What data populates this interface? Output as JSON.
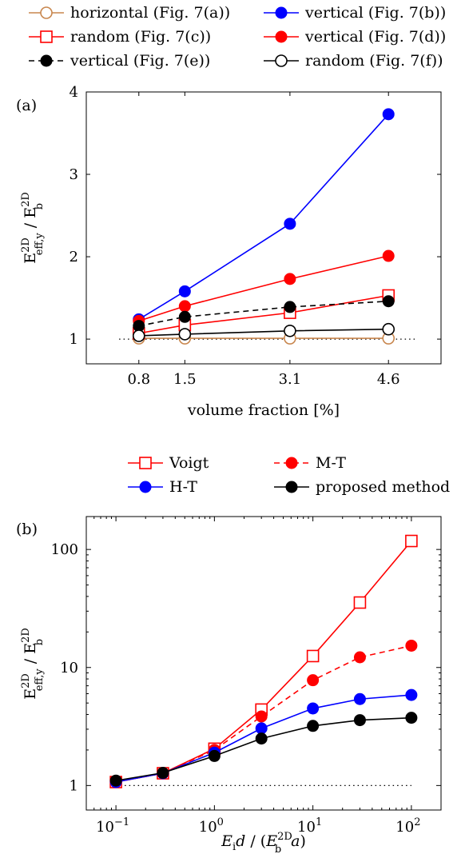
{
  "chart_data": [
    {
      "type": "line",
      "panel_label": "(a)",
      "xlabel": "volume fraction [%]",
      "ylabel": "E^2D_eff,y / E^2D_b",
      "x_ticks": [
        "0.8",
        "1.5",
        "3.1",
        "4.6"
      ],
      "y_ticks": [
        "1",
        "2",
        "3",
        "4"
      ],
      "xlim": [
        0.0,
        5.4
      ],
      "ylim": [
        0.7,
        4.0
      ],
      "grid": false,
      "legend_position": "top",
      "x": [
        0.8,
        1.5,
        3.1,
        4.6
      ],
      "reference_line": {
        "y": 1,
        "style": "dotted"
      },
      "series": [
        {
          "name": "horizontal (Fig. 7(a))",
          "values": [
            1.01,
            1.01,
            1.01,
            1.01
          ],
          "color": "#c8864d",
          "marker": "open-circle",
          "dash": false
        },
        {
          "name": "vertical (Fig. 7(b))",
          "values": [
            1.24,
            1.58,
            2.4,
            3.73
          ],
          "color": "#0000ff",
          "marker": "filled-circle",
          "dash": false
        },
        {
          "name": "random (Fig. 7(c))",
          "values": [
            1.07,
            1.17,
            1.32,
            1.53
          ],
          "color": "#ff0000",
          "marker": "open-square",
          "dash": false
        },
        {
          "name": "vertical (Fig. 7(d))",
          "values": [
            1.22,
            1.4,
            1.73,
            2.01
          ],
          "color": "#ff0000",
          "marker": "filled-circle",
          "dash": false
        },
        {
          "name": "vertical (Fig. 7(e))",
          "values": [
            1.16,
            1.27,
            1.39,
            1.46
          ],
          "color": "#000000",
          "marker": "filled-circle",
          "dash": true
        },
        {
          "name": "random (Fig. 7(f))",
          "values": [
            1.04,
            1.06,
            1.1,
            1.12
          ],
          "color": "#000000",
          "marker": "open-circle",
          "dash": false
        }
      ]
    },
    {
      "type": "line",
      "panel_label": "(b)",
      "xlabel": "E_i d / (E^2D_b a)",
      "ylabel": "E^2D_eff,y / E^2D_b",
      "x_scale": "log",
      "y_scale": "log",
      "x_ticks": [
        {
          "base": "10",
          "exp": "−1",
          "value": 0.1
        },
        {
          "base": "10",
          "exp": "0",
          "value": 1
        },
        {
          "base": "10",
          "exp": "1",
          "value": 10
        },
        {
          "base": "10",
          "exp": "2",
          "value": 100
        }
      ],
      "y_ticks": [
        "1",
        "10",
        "100"
      ],
      "xlim": [
        0.05,
        200
      ],
      "ylim": [
        0.62,
        190
      ],
      "grid": false,
      "legend_position": "top",
      "x": [
        0.1,
        0.3,
        1,
        3,
        10,
        30,
        100
      ],
      "reference_line": {
        "y": 1,
        "style": "dotted"
      },
      "series": [
        {
          "name": "Voigt",
          "values": [
            1.07,
            1.27,
            2.05,
            4.4,
            12.5,
            35.5,
            118
          ],
          "color": "#ff0000",
          "marker": "open-square",
          "dash": false
        },
        {
          "name": "M-T",
          "values": [
            1.07,
            1.27,
            2.0,
            3.85,
            7.8,
            12.2,
            15.3
          ],
          "color": "#ff0000",
          "marker": "filled-circle",
          "dash": true
        },
        {
          "name": "H-T",
          "values": [
            1.07,
            1.27,
            1.9,
            3.05,
            4.5,
            5.4,
            5.85
          ],
          "color": "#0000ff",
          "marker": "filled-circle",
          "dash": false
        },
        {
          "name": "proposed method",
          "values": [
            1.1,
            1.28,
            1.78,
            2.5,
            3.2,
            3.58,
            3.75
          ],
          "color": "#000000",
          "marker": "filled-circle",
          "dash": false
        }
      ]
    }
  ]
}
